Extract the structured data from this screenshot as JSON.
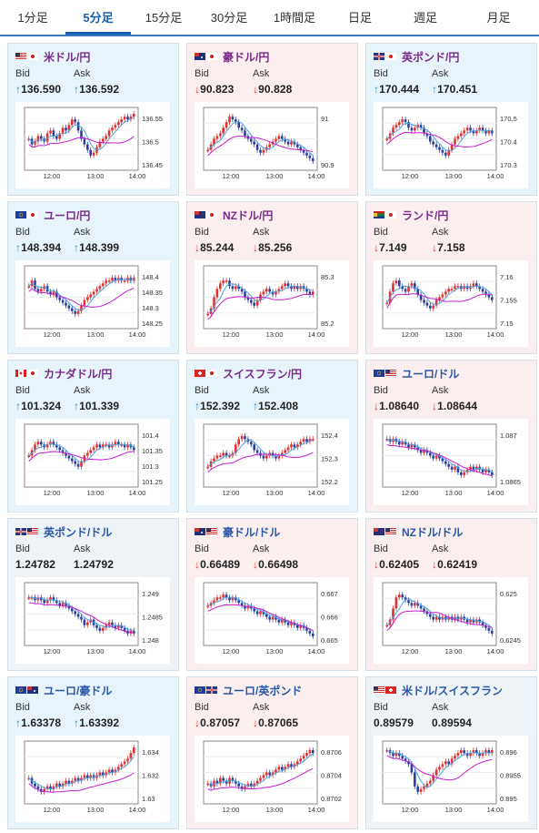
{
  "tabs": [
    {
      "label": "1分足",
      "active": false
    },
    {
      "label": "5分足",
      "active": true
    },
    {
      "label": "15分足",
      "active": false
    },
    {
      "label": "30分足",
      "active": false
    },
    {
      "label": "1時間足",
      "active": false
    },
    {
      "label": "日足",
      "active": false
    },
    {
      "label": "週足",
      "active": false
    },
    {
      "label": "月足",
      "active": false
    }
  ],
  "labels": {
    "bid": "Bid",
    "ask": "Ask"
  },
  "x_ticks": [
    "12:00",
    "13:00",
    "14:00"
  ],
  "colors": {
    "up_arrow": "#1a8fd6",
    "down_arrow": "#d33333",
    "up_candle": "#e23030",
    "down_candle": "#2b3f9e",
    "ma1": "#4aa3df",
    "ma2": "#c41fd0"
  },
  "cards": [
    {
      "pair": "米ドル/円",
      "flags": [
        "us",
        "jp"
      ],
      "trend": "up",
      "bid_arrow": "↑",
      "bid": "136.590",
      "ask_arrow": "↑",
      "ask": "136.592",
      "y_ticks": [
        "136.55",
        "136.5",
        "136.45"
      ],
      "chart_data": {
        "type": "candlestick",
        "shape": [
          0.5,
          0.6,
          0.55,
          0.45,
          0.5,
          0.55,
          0.4,
          0.35,
          0.45,
          0.5,
          0.4,
          0.3,
          0.35,
          0.25,
          0.15,
          0.2,
          0.35,
          0.5,
          0.6,
          0.7,
          0.8,
          0.75,
          0.65,
          0.55,
          0.5,
          0.45,
          0.35,
          0.3,
          0.25,
          0.2,
          0.15,
          0.1,
          0.15,
          0.1,
          0.05
        ]
      }
    },
    {
      "pair": "豪ドル/円",
      "flags": [
        "au",
        "jp"
      ],
      "trend": "down",
      "bid_arrow": "↓",
      "bid": "90.823",
      "ask_arrow": "↓",
      "ask": "90.828",
      "y_ticks": [
        "91",
        "90.9"
      ],
      "chart_data": {
        "type": "candlestick",
        "shape": [
          0.7,
          0.6,
          0.5,
          0.45,
          0.4,
          0.3,
          0.2,
          0.1,
          0.15,
          0.2,
          0.3,
          0.35,
          0.45,
          0.5,
          0.55,
          0.6,
          0.7,
          0.75,
          0.7,
          0.65,
          0.6,
          0.55,
          0.5,
          0.45,
          0.5,
          0.55,
          0.6,
          0.55,
          0.6,
          0.65,
          0.7,
          0.75,
          0.8,
          0.85,
          0.9
        ]
      }
    },
    {
      "pair": "英ポンド/円",
      "flags": [
        "gb",
        "jp"
      ],
      "trend": "up",
      "bid_arrow": "↑",
      "bid": "170.444",
      "ask_arrow": "↑",
      "ask": "170.451",
      "y_ticks": [
        "170.5",
        "170.4",
        "170.3"
      ],
      "chart_data": {
        "type": "candlestick",
        "shape": [
          0.5,
          0.4,
          0.3,
          0.25,
          0.2,
          0.15,
          0.2,
          0.3,
          0.35,
          0.3,
          0.25,
          0.3,
          0.4,
          0.45,
          0.55,
          0.6,
          0.65,
          0.7,
          0.75,
          0.8,
          0.7,
          0.6,
          0.5,
          0.45,
          0.4,
          0.35,
          0.3,
          0.35,
          0.4,
          0.35,
          0.3,
          0.35,
          0.4,
          0.35,
          0.4
        ]
      }
    },
    {
      "pair": "ユーロ/円",
      "flags": [
        "eu",
        "jp"
      ],
      "trend": "up",
      "bid_arrow": "↑",
      "bid": "148.394",
      "ask_arrow": "↑",
      "ask": "148.399",
      "y_ticks": [
        "148.4",
        "148.35",
        "148.3",
        "148.25"
      ],
      "chart_data": {
        "type": "candlestick",
        "shape": [
          0.3,
          0.2,
          0.35,
          0.4,
          0.35,
          0.3,
          0.4,
          0.45,
          0.4,
          0.5,
          0.55,
          0.6,
          0.65,
          0.7,
          0.75,
          0.8,
          0.75,
          0.65,
          0.55,
          0.5,
          0.45,
          0.4,
          0.35,
          0.3,
          0.25,
          0.2,
          0.2,
          0.15,
          0.2,
          0.15,
          0.2,
          0.2,
          0.15,
          0.2,
          0.15
        ]
      }
    },
    {
      "pair": "NZドル/円",
      "flags": [
        "nz",
        "jp"
      ],
      "trend": "down",
      "bid_arrow": "↓",
      "bid": "85.244",
      "ask_arrow": "↓",
      "ask": "85.256",
      "y_ticks": [
        "85.3",
        "85.2"
      ],
      "chart_data": {
        "type": "candlestick",
        "shape": [
          0.8,
          0.7,
          0.5,
          0.35,
          0.25,
          0.2,
          0.2,
          0.3,
          0.35,
          0.3,
          0.35,
          0.4,
          0.5,
          0.55,
          0.6,
          0.65,
          0.55,
          0.45,
          0.4,
          0.35,
          0.4,
          0.45,
          0.4,
          0.35,
          0.3,
          0.25,
          0.3,
          0.35,
          0.3,
          0.35,
          0.3,
          0.35,
          0.4,
          0.45,
          0.4
        ]
      }
    },
    {
      "pair": "ランド/円",
      "flags": [
        "za",
        "jp"
      ],
      "trend": "down",
      "bid_arrow": "↓",
      "bid": "7.149",
      "ask_arrow": "↓",
      "ask": "7.158",
      "y_ticks": [
        "7.16",
        "7.155",
        "7.15"
      ],
      "chart_data": {
        "type": "candlestick",
        "shape": [
          0.6,
          0.4,
          0.25,
          0.2,
          0.3,
          0.35,
          0.4,
          0.3,
          0.25,
          0.35,
          0.45,
          0.55,
          0.6,
          0.65,
          0.7,
          0.65,
          0.55,
          0.5,
          0.45,
          0.4,
          0.35,
          0.35,
          0.3,
          0.3,
          0.35,
          0.3,
          0.35,
          0.3,
          0.25,
          0.3,
          0.35,
          0.4,
          0.45,
          0.5,
          0.55
        ]
      }
    },
    {
      "pair": "カナダドル/円",
      "flags": [
        "ca",
        "jp"
      ],
      "trend": "up",
      "bid_arrow": "↑",
      "bid": "101.324",
      "ask_arrow": "↑",
      "ask": "101.339",
      "y_ticks": [
        "101.4",
        "101.35",
        "101.3",
        "101.25"
      ],
      "chart_data": {
        "type": "candlestick",
        "shape": [
          0.5,
          0.4,
          0.3,
          0.25,
          0.3,
          0.35,
          0.3,
          0.25,
          0.3,
          0.35,
          0.4,
          0.45,
          0.5,
          0.55,
          0.6,
          0.65,
          0.7,
          0.6,
          0.5,
          0.45,
          0.4,
          0.35,
          0.3,
          0.35,
          0.3,
          0.3,
          0.35,
          0.3,
          0.25,
          0.3,
          0.3,
          0.35,
          0.3,
          0.35,
          0.4
        ]
      }
    },
    {
      "pair": "スイスフラン/円",
      "flags": [
        "ch",
        "jp"
      ],
      "trend": "up",
      "bid_arrow": "↑",
      "bid": "152.392",
      "ask_arrow": "↑",
      "ask": "152.408",
      "y_ticks": [
        "152.4",
        "152.3",
        "152.2"
      ],
      "chart_data": {
        "type": "candlestick",
        "shape": [
          0.7,
          0.6,
          0.55,
          0.5,
          0.5,
          0.45,
          0.5,
          0.5,
          0.45,
          0.3,
          0.2,
          0.15,
          0.2,
          0.25,
          0.3,
          0.4,
          0.45,
          0.5,
          0.55,
          0.5,
          0.45,
          0.5,
          0.55,
          0.5,
          0.45,
          0.4,
          0.35,
          0.3,
          0.35,
          0.3,
          0.25,
          0.2,
          0.25,
          0.2,
          0.2
        ]
      }
    },
    {
      "pair": "ユーロ/ドル",
      "flags": [
        "eu",
        "us"
      ],
      "trend": "down",
      "bid_arrow": "↓",
      "bid": "1.08640",
      "ask_arrow": "↓",
      "ask": "1.08644",
      "y_ticks": [
        "1.087",
        "1.0865"
      ],
      "chart_data": {
        "type": "candlestick",
        "shape": [
          0.2,
          0.25,
          0.2,
          0.25,
          0.3,
          0.25,
          0.3,
          0.35,
          0.3,
          0.35,
          0.4,
          0.45,
          0.4,
          0.45,
          0.5,
          0.55,
          0.5,
          0.55,
          0.6,
          0.65,
          0.7,
          0.75,
          0.7,
          0.8,
          0.85,
          0.8,
          0.75,
          0.7,
          0.75,
          0.7,
          0.75,
          0.8,
          0.75,
          0.8,
          0.85
        ]
      }
    },
    {
      "pair": "英ポンド/ドル",
      "flags": [
        "gb",
        "us"
      ],
      "trend": "flat",
      "bid_arrow": "",
      "bid": "1.24782",
      "ask_arrow": "",
      "ask": "1.24792",
      "y_ticks": [
        "1.249",
        "1.2485",
        "1.248"
      ],
      "chart_data": {
        "type": "candlestick",
        "shape": [
          0.2,
          0.2,
          0.25,
          0.2,
          0.25,
          0.3,
          0.25,
          0.2,
          0.25,
          0.3,
          0.35,
          0.3,
          0.35,
          0.4,
          0.45,
          0.5,
          0.55,
          0.6,
          0.7,
          0.65,
          0.6,
          0.7,
          0.75,
          0.8,
          0.75,
          0.7,
          0.65,
          0.7,
          0.75,
          0.7,
          0.75,
          0.8,
          0.85,
          0.8,
          0.85
        ]
      }
    },
    {
      "pair": "豪ドル/ドル",
      "flags": [
        "au",
        "us"
      ],
      "trend": "down",
      "bid_arrow": "↓",
      "bid": "0.66489",
      "ask_arrow": "↓",
      "ask": "0.66498",
      "y_ticks": [
        "0.667",
        "0.666",
        "0.665"
      ],
      "chart_data": {
        "type": "candlestick",
        "shape": [
          0.35,
          0.3,
          0.25,
          0.2,
          0.2,
          0.15,
          0.2,
          0.25,
          0.2,
          0.25,
          0.3,
          0.35,
          0.4,
          0.35,
          0.4,
          0.45,
          0.5,
          0.45,
          0.5,
          0.55,
          0.6,
          0.55,
          0.6,
          0.65,
          0.6,
          0.65,
          0.7,
          0.65,
          0.7,
          0.75,
          0.7,
          0.75,
          0.8,
          0.85,
          0.9
        ]
      }
    },
    {
      "pair": "NZドル/ドル",
      "flags": [
        "nz",
        "us"
      ],
      "trend": "down",
      "bid_arrow": "↓",
      "bid": "0.62405",
      "ask_arrow": "↓",
      "ask": "0.62419",
      "y_ticks": [
        "0.625",
        "0.6245"
      ],
      "chart_data": {
        "type": "candlestick",
        "shape": [
          0.7,
          0.6,
          0.4,
          0.2,
          0.15,
          0.2,
          0.25,
          0.3,
          0.35,
          0.3,
          0.35,
          0.4,
          0.45,
          0.5,
          0.55,
          0.6,
          0.55,
          0.6,
          0.55,
          0.6,
          0.55,
          0.6,
          0.55,
          0.6,
          0.55,
          0.6,
          0.65,
          0.6,
          0.65,
          0.6,
          0.65,
          0.7,
          0.75,
          0.8,
          0.85
        ]
      }
    },
    {
      "pair": "ユーロ/豪ドル",
      "flags": [
        "eu",
        "au"
      ],
      "trend": "up",
      "bid_arrow": "↑",
      "bid": "1.63378",
      "ask_arrow": "↑",
      "ask": "1.63392",
      "y_ticks": [
        "1.634",
        "1.632",
        "1.63"
      ],
      "chart_data": {
        "type": "candlestick",
        "shape": [
          0.6,
          0.7,
          0.75,
          0.8,
          0.85,
          0.8,
          0.75,
          0.8,
          0.75,
          0.7,
          0.75,
          0.7,
          0.65,
          0.7,
          0.65,
          0.6,
          0.65,
          0.6,
          0.55,
          0.6,
          0.55,
          0.6,
          0.55,
          0.5,
          0.55,
          0.5,
          0.45,
          0.5,
          0.45,
          0.4,
          0.35,
          0.3,
          0.25,
          0.15,
          0.05
        ]
      }
    },
    {
      "pair": "ユーロ/英ポンド",
      "flags": [
        "eu",
        "gb"
      ],
      "trend": "down",
      "bid_arrow": "↓",
      "bid": "0.87057",
      "ask_arrow": "↓",
      "ask": "0.87065",
      "y_ticks": [
        "0.8706",
        "0.8704",
        "0.8702"
      ],
      "chart_data": {
        "type": "candlestick",
        "shape": [
          0.7,
          0.75,
          0.65,
          0.7,
          0.6,
          0.65,
          0.7,
          0.6,
          0.65,
          0.7,
          0.75,
          0.8,
          0.75,
          0.7,
          0.75,
          0.7,
          0.65,
          0.6,
          0.55,
          0.5,
          0.55,
          0.5,
          0.45,
          0.4,
          0.45,
          0.4,
          0.35,
          0.4,
          0.35,
          0.3,
          0.25,
          0.2,
          0.15,
          0.1,
          0.15
        ]
      }
    },
    {
      "pair": "米ドル/スイスフラン",
      "flags": [
        "us",
        "ch"
      ],
      "trend": "flat",
      "bid_arrow": "",
      "bid": "0.89579",
      "ask_arrow": "",
      "ask": "0.89594",
      "y_ticks": [
        "0.896",
        "0.8955",
        "0.895"
      ],
      "chart_data": {
        "type": "candlestick",
        "shape": [
          0.1,
          0.15,
          0.2,
          0.15,
          0.2,
          0.25,
          0.3,
          0.35,
          0.5,
          0.75,
          0.85,
          0.8,
          0.75,
          0.7,
          0.65,
          0.55,
          0.45,
          0.4,
          0.35,
          0.3,
          0.35,
          0.25,
          0.2,
          0.15,
          0.1,
          0.15,
          0.2,
          0.15,
          0.1,
          0.15,
          0.2,
          0.15,
          0.1,
          0.15,
          0.1
        ]
      }
    }
  ]
}
